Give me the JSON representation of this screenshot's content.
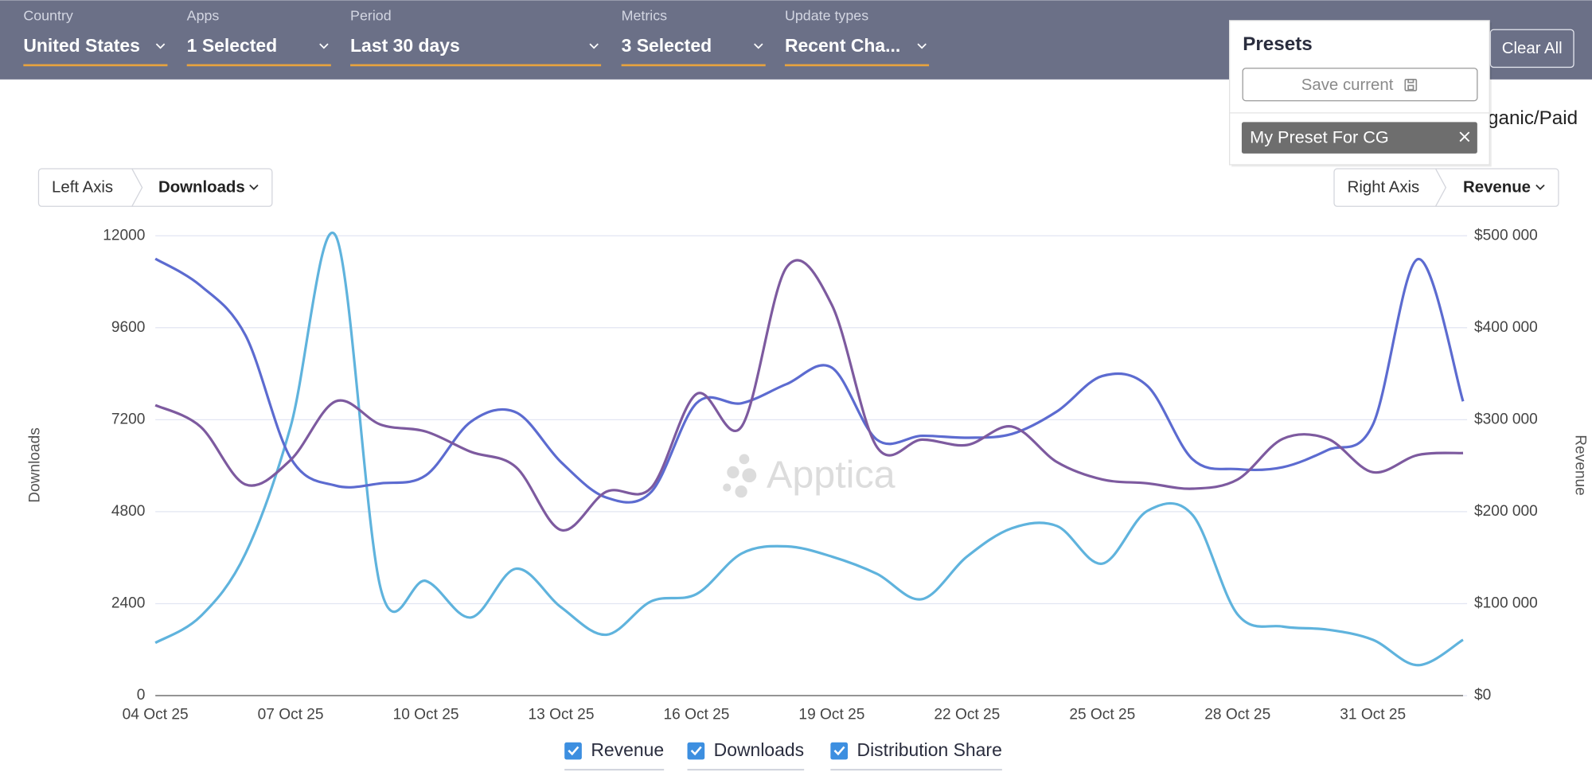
{
  "filters": [
    {
      "label": "Country",
      "value": "United States"
    },
    {
      "label": "Apps",
      "value": "1 Selected"
    },
    {
      "label": "Period",
      "value": "Last 30 days"
    },
    {
      "label": "Metrics",
      "value": "3 Selected"
    },
    {
      "label": "Update types",
      "value": "Recent Cha..."
    }
  ],
  "clear_all": "Clear All",
  "view_toggle": "Organic/Paid",
  "presets": {
    "title": "Presets",
    "save_button": "Save current",
    "items": [
      "My Preset For CG"
    ]
  },
  "left_axis": {
    "label": "Left Axis",
    "value": "Downloads"
  },
  "right_axis": {
    "label": "Right Axis",
    "value": "Revenue"
  },
  "watermark": "Apptica",
  "chart_data": {
    "type": "line",
    "y_label": "Downloads",
    "y2_label": "Revenue",
    "ylim": [
      0,
      12000
    ],
    "yticks": [
      0,
      2400,
      4800,
      7200,
      9600,
      12000
    ],
    "y2lim": [
      0,
      500000
    ],
    "y2ticks": [
      {
        "value": 0,
        "label": "$0"
      },
      {
        "value": 100000,
        "label": "$100 000"
      },
      {
        "value": 200000,
        "label": "$200 000"
      },
      {
        "value": 300000,
        "label": "$300 000"
      },
      {
        "value": 400000,
        "label": "$400 000"
      },
      {
        "value": 500000,
        "label": "$500 000"
      }
    ],
    "grid": true,
    "categories": [
      "04 Oct 25",
      null,
      null,
      "07 Oct 25",
      null,
      null,
      "10 Oct 25",
      null,
      null,
      "13 Oct 25",
      null,
      null,
      "16 Oct 25",
      null,
      null,
      "19 Oct 25",
      null,
      null,
      "22 Oct 25",
      null,
      null,
      "25 Oct 25",
      null,
      null,
      "28 Oct 25",
      null,
      null,
      "31 Oct 25",
      null,
      null
    ],
    "series": [
      {
        "name": "Revenue",
        "color": "#5fb3dd",
        "axis": "y2",
        "values": [
          57400,
          86100,
          154500,
          292500,
          500000,
          115900,
          124700,
          85000,
          138000,
          96000,
          66200,
          102600,
          110400,
          154500,
          162300,
          151200,
          132500,
          104900,
          151200,
          182100,
          184300,
          143500,
          200900,
          196500,
          88300,
          75100,
          71700,
          60700,
          33100,
          60700
        ]
      },
      {
        "name": "Downloads",
        "color": "#5c6bd0",
        "values": [
          11400,
          10700,
          9400,
          6200,
          5480,
          5540,
          5750,
          7150,
          7390,
          6090,
          5170,
          5320,
          7630,
          7630,
          8130,
          8560,
          6680,
          6780,
          6730,
          6830,
          7420,
          8340,
          8080,
          6170,
          5910,
          5960,
          6410,
          7070,
          11390,
          7680
        ]
      },
      {
        "name": "Distribution Share",
        "color": "#7d5a9f",
        "values": [
          7580,
          7020,
          5510,
          6150,
          7680,
          7070,
          6890,
          6360,
          5960,
          4320,
          5320,
          5430,
          7870,
          7020,
          11180,
          10200,
          6490,
          6680,
          6540,
          7020,
          6090,
          5640,
          5540,
          5400,
          5640,
          6700,
          6700,
          5830,
          6280,
          6330
        ]
      }
    ]
  }
}
